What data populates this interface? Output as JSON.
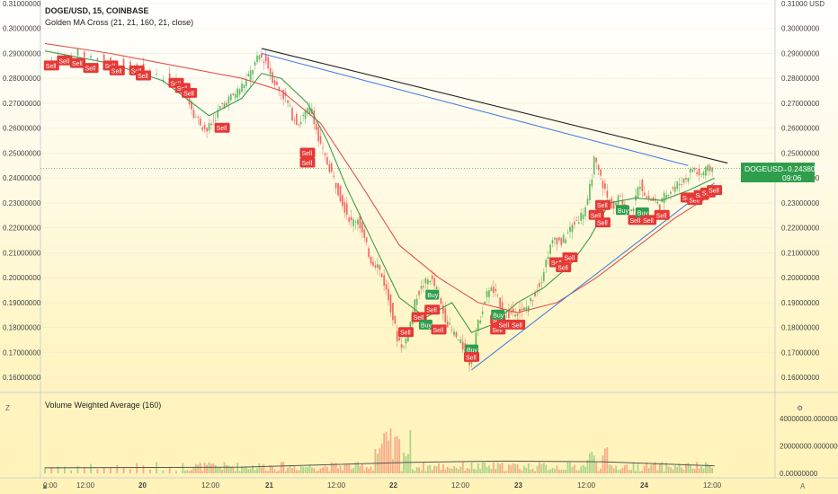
{
  "header": {
    "symbol": "DOGE/USD, 15, COINBASE",
    "indicator": "Golden MA Cross (21, 21, 160, 21, close)",
    "volume_indicator": "Volume Weighted Average (160)"
  },
  "price_tag": {
    "symbol": "DOGEUSD",
    "price": "0.24380000",
    "countdown": "09:06"
  },
  "corner_labels": {
    "left": "Z",
    "right": "A"
  },
  "colors": {
    "up": "#4caf50",
    "down": "#ef5350",
    "ma_fast": "#3f9c4a",
    "ma_slow": "#e0534f",
    "trend_black": "#222222",
    "trend_blue": "#4a7fe0",
    "vol_avg": "#555555",
    "sell_bg": "#e53935",
    "buy_bg": "#2e9e4c"
  },
  "chart_data": {
    "type": "candlestick",
    "y_axis": {
      "ticks": [
        "0.31000000",
        "0.30000000",
        "0.29000000",
        "0.28000000",
        "0.27000000",
        "0.26000000",
        "0.25000000",
        "0.24000000",
        "0.23000000",
        "0.22000000",
        "0.21000000",
        "0.20000000",
        "0.19000000",
        "0.18000000",
        "0.17000000",
        "0.16000000"
      ],
      "ylim": [
        0.155,
        0.31
      ],
      "top_tick_suffix": "USD"
    },
    "volume_axis": {
      "ticks": [
        "40000000.00000000",
        "20000000.00000000",
        "0.00000000"
      ],
      "ylim": [
        0,
        52000000
      ]
    },
    "x_axis": {
      "ticks": [
        "0:00",
        "12:00",
        "20",
        "12:00",
        "21",
        "12:00",
        "22",
        "12:00",
        "23",
        "12:00",
        "24",
        "12:00"
      ]
    },
    "price_path": [
      [
        0,
        0.285
      ],
      [
        3,
        0.288
      ],
      [
        6,
        0.29
      ],
      [
        9,
        0.288
      ],
      [
        12,
        0.286
      ],
      [
        15,
        0.284
      ],
      [
        18,
        0.281
      ],
      [
        21,
        0.278
      ],
      [
        22,
        0.274
      ],
      [
        23,
        0.266
      ],
      [
        24,
        0.262
      ],
      [
        25,
        0.259
      ],
      [
        26,
        0.263
      ],
      [
        27,
        0.268
      ],
      [
        28,
        0.271
      ],
      [
        29,
        0.273
      ],
      [
        30,
        0.276
      ],
      [
        31,
        0.279
      ],
      [
        32,
        0.284
      ],
      [
        33,
        0.289
      ],
      [
        34,
        0.287
      ],
      [
        35,
        0.28
      ],
      [
        36,
        0.275
      ],
      [
        37,
        0.272
      ],
      [
        38,
        0.265
      ],
      [
        39,
        0.262
      ],
      [
        40,
        0.266
      ],
      [
        41,
        0.268
      ],
      [
        42,
        0.255
      ],
      [
        43,
        0.248
      ],
      [
        44,
        0.242
      ],
      [
        45,
        0.235
      ],
      [
        46,
        0.228
      ],
      [
        47,
        0.222
      ],
      [
        48,
        0.224
      ],
      [
        49,
        0.215
      ],
      [
        50,
        0.207
      ],
      [
        51,
        0.205
      ],
      [
        52,
        0.198
      ],
      [
        53,
        0.188
      ],
      [
        54,
        0.176
      ],
      [
        55,
        0.172
      ],
      [
        56,
        0.182
      ],
      [
        57,
        0.193
      ],
      [
        58,
        0.197
      ],
      [
        59,
        0.2
      ],
      [
        60,
        0.195
      ],
      [
        61,
        0.186
      ],
      [
        62,
        0.18
      ],
      [
        63,
        0.176
      ],
      [
        64,
        0.172
      ],
      [
        65,
        0.166
      ],
      [
        66,
        0.178
      ],
      [
        67,
        0.188
      ],
      [
        68,
        0.196
      ],
      [
        69,
        0.193
      ],
      [
        70,
        0.188
      ],
      [
        71,
        0.185
      ],
      [
        72,
        0.187
      ],
      [
        73,
        0.186
      ],
      [
        74,
        0.189
      ],
      [
        75,
        0.194
      ],
      [
        76,
        0.2
      ],
      [
        77,
        0.21
      ],
      [
        78,
        0.216
      ],
      [
        79,
        0.214
      ],
      [
        80,
        0.218
      ],
      [
        81,
        0.222
      ],
      [
        82,
        0.225
      ],
      [
        83,
        0.23
      ],
      [
        84,
        0.247
      ],
      [
        85,
        0.24
      ],
      [
        86,
        0.232
      ],
      [
        87,
        0.228
      ],
      [
        88,
        0.233
      ],
      [
        89,
        0.226
      ],
      [
        90,
        0.229
      ],
      [
        91,
        0.238
      ],
      [
        92,
        0.232
      ],
      [
        93,
        0.231
      ],
      [
        94,
        0.229
      ],
      [
        95,
        0.234
      ],
      [
        96,
        0.236
      ],
      [
        97,
        0.238
      ],
      [
        98,
        0.24
      ],
      [
        99,
        0.244
      ],
      [
        100,
        0.241
      ],
      [
        101,
        0.243
      ],
      [
        102,
        0.244
      ]
    ],
    "ma_fast": [
      [
        0,
        0.291
      ],
      [
        10,
        0.286
      ],
      [
        18,
        0.279
      ],
      [
        25,
        0.265
      ],
      [
        30,
        0.272
      ],
      [
        33,
        0.282
      ],
      [
        36,
        0.28
      ],
      [
        40,
        0.27
      ],
      [
        43,
        0.255
      ],
      [
        46,
        0.236
      ],
      [
        50,
        0.214
      ],
      [
        54,
        0.192
      ],
      [
        58,
        0.184
      ],
      [
        62,
        0.19
      ],
      [
        65,
        0.178
      ],
      [
        68,
        0.181
      ],
      [
        72,
        0.19
      ],
      [
        76,
        0.196
      ],
      [
        80,
        0.205
      ],
      [
        83,
        0.216
      ],
      [
        86,
        0.23
      ],
      [
        90,
        0.232
      ],
      [
        94,
        0.231
      ],
      [
        98,
        0.235
      ],
      [
        102,
        0.24
      ]
    ],
    "ma_slow": [
      [
        0,
        0.294
      ],
      [
        10,
        0.29
      ],
      [
        20,
        0.285
      ],
      [
        30,
        0.28
      ],
      [
        36,
        0.275
      ],
      [
        42,
        0.262
      ],
      [
        48,
        0.238
      ],
      [
        54,
        0.213
      ],
      [
        60,
        0.2
      ],
      [
        66,
        0.19
      ],
      [
        72,
        0.186
      ],
      [
        78,
        0.19
      ],
      [
        84,
        0.2
      ],
      [
        90,
        0.212
      ],
      [
        96,
        0.224
      ],
      [
        102,
        0.234
      ]
    ],
    "trendlines": [
      {
        "color": "black",
        "from": [
          33,
          0.292
        ],
        "to": [
          104,
          0.246
        ]
      },
      {
        "color": "blue",
        "from": [
          33,
          0.29
        ],
        "to": [
          98,
          0.245
        ]
      },
      {
        "color": "blue",
        "from": [
          65,
          0.163
        ],
        "to": [
          102,
          0.238
        ]
      }
    ],
    "signals": [
      {
        "type": "Sell",
        "t": 1,
        "p": 0.285
      },
      {
        "type": "Sell",
        "t": 3,
        "p": 0.287
      },
      {
        "type": "Sell",
        "t": 5,
        "p": 0.286
      },
      {
        "type": "Sell",
        "t": 7,
        "p": 0.284
      },
      {
        "type": "Sell",
        "t": 10,
        "p": 0.285
      },
      {
        "type": "Sell",
        "t": 11,
        "p": 0.283
      },
      {
        "type": "Sell",
        "t": 14,
        "p": 0.283
      },
      {
        "type": "Sell",
        "t": 15,
        "p": 0.281
      },
      {
        "type": "Sell",
        "t": 20,
        "p": 0.278
      },
      {
        "type": "Sell",
        "t": 21,
        "p": 0.276
      },
      {
        "type": "Sell",
        "t": 22,
        "p": 0.274
      },
      {
        "type": "Sell",
        "t": 27,
        "p": 0.26
      },
      {
        "type": "Sell",
        "t": 40,
        "p": 0.25
      },
      {
        "type": "Sell",
        "t": 40,
        "p": 0.246
      },
      {
        "type": "Sell",
        "t": 55,
        "p": 0.178
      },
      {
        "type": "Sell",
        "t": 57,
        "p": 0.184
      },
      {
        "type": "Buy",
        "t": 58,
        "p": 0.181
      },
      {
        "type": "Sell",
        "t": 59,
        "p": 0.187
      },
      {
        "type": "Buy",
        "t": 59,
        "p": 0.193
      },
      {
        "type": "Sell",
        "t": 60,
        "p": 0.179
      },
      {
        "type": "Buy",
        "t": 65,
        "p": 0.171
      },
      {
        "type": "Sell",
        "t": 65,
        "p": 0.168
      },
      {
        "type": "Sell",
        "t": 69,
        "p": 0.183
      },
      {
        "type": "Buy",
        "t": 69,
        "p": 0.185
      },
      {
        "type": "Sell",
        "t": 69,
        "p": 0.179
      },
      {
        "type": "Sell",
        "t": 70,
        "p": 0.181
      },
      {
        "type": "Sell",
        "t": 72,
        "p": 0.181
      },
      {
        "type": "Sell",
        "t": 78,
        "p": 0.206
      },
      {
        "type": "Sell",
        "t": 79,
        "p": 0.204
      },
      {
        "type": "Sell",
        "t": 80,
        "p": 0.208
      },
      {
        "type": "Sell",
        "t": 84,
        "p": 0.225
      },
      {
        "type": "Sell",
        "t": 85,
        "p": 0.229
      },
      {
        "type": "Sell",
        "t": 85,
        "p": 0.222
      },
      {
        "type": "Buy",
        "t": 88,
        "p": 0.227
      },
      {
        "type": "Sell",
        "t": 90,
        "p": 0.223
      },
      {
        "type": "Buy",
        "t": 91,
        "p": 0.226
      },
      {
        "type": "Sell",
        "t": 92,
        "p": 0.223
      },
      {
        "type": "Sell",
        "t": 94,
        "p": 0.225
      },
      {
        "type": "Sell",
        "t": 98,
        "p": 0.232
      },
      {
        "type": "Sell",
        "t": 99,
        "p": 0.231
      },
      {
        "type": "Sell",
        "t": 100,
        "p": 0.233
      },
      {
        "type": "Sell",
        "t": 101,
        "p": 0.234
      },
      {
        "type": "Sell",
        "t": 102,
        "p": 0.235
      }
    ]
  }
}
